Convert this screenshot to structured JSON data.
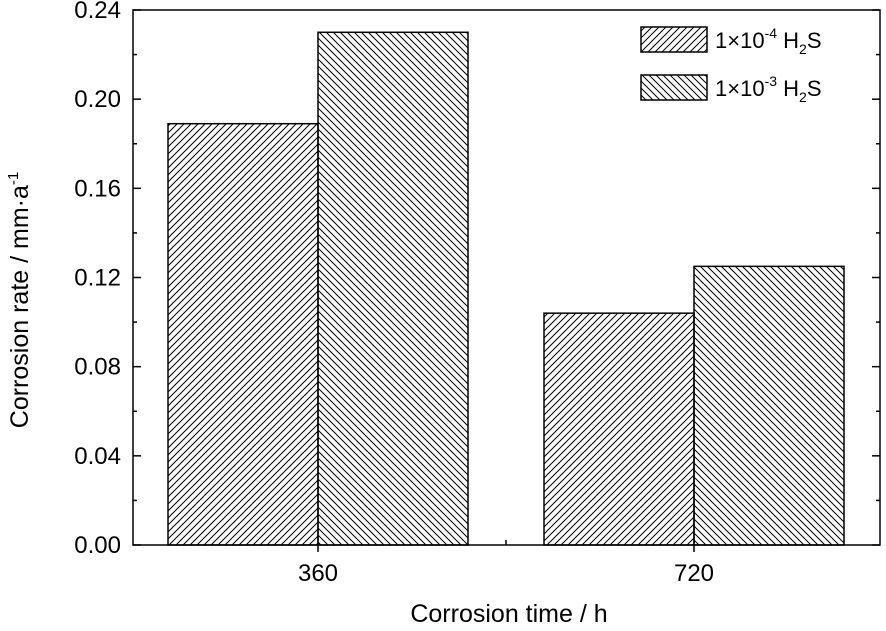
{
  "chart_data": {
    "type": "bar",
    "categories": [
      "360",
      "720"
    ],
    "series": [
      {
        "name": "1×10^-4 H2S",
        "legend": {
          "base": "1×10",
          "exp": "-4",
          "h": " H",
          "sub": "2",
          "s": "S"
        },
        "values": [
          0.189,
          0.104
        ],
        "hatch": "forward"
      },
      {
        "name": "1×10^-3 H2S",
        "legend": {
          "base": "1×10",
          "exp": "-3",
          "h": " H",
          "sub": "2",
          "s": "S"
        },
        "values": [
          0.23,
          0.125
        ],
        "hatch": "backward"
      }
    ],
    "xlabel": "Corrosion time / h",
    "ylabel": {
      "main": "Corrosion rate / mm·a",
      "sup": "-1"
    },
    "ylim": [
      0,
      0.24
    ],
    "yticks": [
      "0.00",
      "0.04",
      "0.08",
      "0.12",
      "0.16",
      "0.20",
      "0.24"
    ],
    "ytick_values": [
      0,
      0.04,
      0.08,
      0.12,
      0.16,
      0.2,
      0.24
    ],
    "grid": false,
    "legend_position": "top-right",
    "colors": {
      "bar_fill": "#ffffff",
      "stroke": "#000000"
    }
  }
}
